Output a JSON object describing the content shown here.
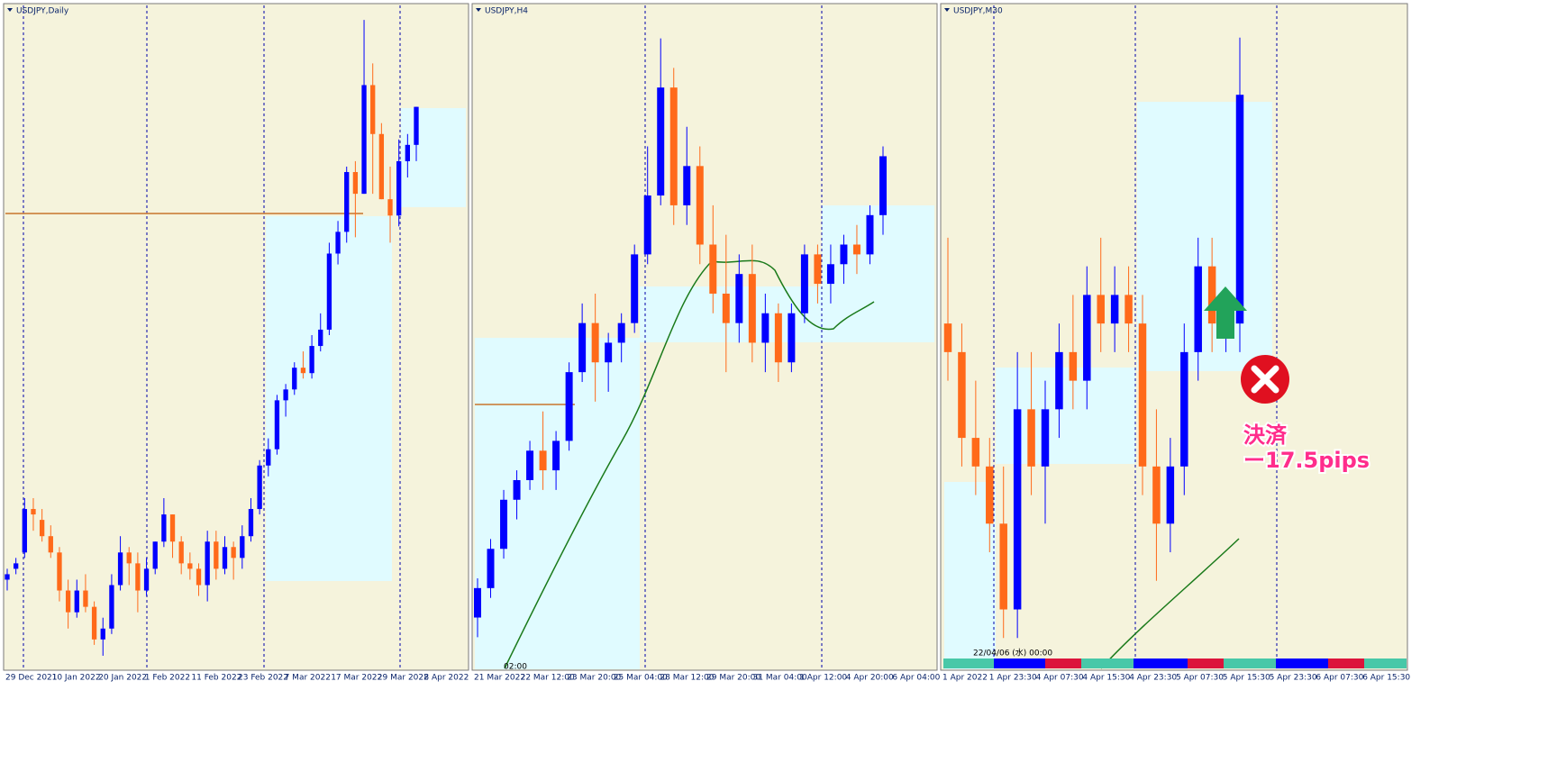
{
  "panels": [
    {
      "title": "USDJPY,Daily",
      "type": "candlestick",
      "ylim": [
        113.2,
        125.3
      ],
      "candles": [
        [
          114.8,
          115.0,
          114.6,
          114.9
        ],
        [
          115.0,
          115.2,
          114.9,
          115.1
        ],
        [
          115.3,
          116.3,
          115.2,
          116.1
        ],
        [
          116.1,
          116.3,
          115.7,
          116.0
        ],
        [
          115.9,
          116.1,
          115.5,
          115.6
        ],
        [
          115.6,
          115.8,
          115.2,
          115.3
        ],
        [
          115.3,
          115.4,
          114.4,
          114.6
        ],
        [
          114.6,
          114.8,
          113.9,
          114.2
        ],
        [
          114.2,
          114.8,
          114.1,
          114.6
        ],
        [
          114.6,
          114.9,
          114.2,
          114.3
        ],
        [
          114.3,
          114.4,
          113.6,
          113.7
        ],
        [
          113.7,
          114.1,
          113.4,
          113.9
        ],
        [
          113.9,
          114.9,
          113.8,
          114.7
        ],
        [
          114.7,
          115.6,
          114.6,
          115.3
        ],
        [
          115.3,
          115.4,
          114.7,
          115.1
        ],
        [
          115.1,
          115.3,
          114.2,
          114.6
        ],
        [
          114.6,
          115.2,
          114.5,
          115.0
        ],
        [
          115.0,
          115.5,
          114.9,
          115.5
        ],
        [
          115.5,
          116.3,
          115.4,
          116.0
        ],
        [
          116.0,
          116.0,
          115.2,
          115.5
        ],
        [
          115.5,
          115.6,
          114.9,
          115.1
        ],
        [
          115.1,
          115.3,
          114.8,
          115.0
        ],
        [
          115.0,
          115.1,
          114.5,
          114.7
        ],
        [
          114.7,
          115.7,
          114.4,
          115.5
        ],
        [
          115.5,
          115.7,
          114.8,
          115.0
        ],
        [
          115.0,
          115.6,
          114.9,
          115.4
        ],
        [
          115.4,
          115.5,
          114.8,
          115.2
        ],
        [
          115.2,
          115.8,
          115.0,
          115.6
        ],
        [
          115.6,
          116.3,
          115.5,
          116.1
        ],
        [
          116.1,
          117.0,
          116.0,
          116.9
        ],
        [
          116.9,
          117.4,
          116.7,
          117.2
        ],
        [
          117.2,
          118.2,
          117.1,
          118.1
        ],
        [
          118.1,
          118.4,
          117.8,
          118.3
        ],
        [
          118.3,
          118.8,
          118.2,
          118.7
        ],
        [
          118.7,
          119.0,
          118.5,
          118.6
        ],
        [
          118.6,
          119.3,
          118.5,
          119.1
        ],
        [
          119.1,
          119.7,
          119.0,
          119.4
        ],
        [
          119.4,
          121.0,
          119.3,
          120.8
        ],
        [
          120.8,
          121.4,
          120.6,
          121.2
        ],
        [
          121.2,
          122.4,
          121.0,
          122.3
        ],
        [
          122.3,
          122.5,
          121.1,
          121.9
        ],
        [
          121.9,
          125.1,
          121.9,
          123.9
        ],
        [
          123.9,
          124.3,
          121.9,
          123.0
        ],
        [
          123.0,
          123.2,
          121.8,
          121.8
        ],
        [
          121.8,
          122.4,
          121.0,
          121.5
        ],
        [
          121.5,
          122.9,
          121.3,
          122.5
        ],
        [
          122.5,
          123.0,
          122.2,
          122.8
        ],
        [
          122.8,
          123.5,
          122.5,
          123.5
        ]
      ],
      "x_labels": [
        "29 Dec 2021",
        "10 Jan 2022",
        "20 Jan 2022",
        "1 Feb 2022",
        "11 Feb 2022",
        "23 Feb 2022",
        "7 Mar 2022",
        "17 Mar 2022",
        "29 Mar 2022",
        "8 Apr 2022"
      ]
    },
    {
      "title": "USDJPY,H4",
      "type": "candlestick",
      "ylim": [
        118.7,
        125.4
      ],
      "candles": [
        [
          119.2,
          119.6,
          119.0,
          119.5
        ],
        [
          119.5,
          120.0,
          119.4,
          119.9
        ],
        [
          119.9,
          120.5,
          119.8,
          120.4
        ],
        [
          120.4,
          120.7,
          120.2,
          120.6
        ],
        [
          120.6,
          121.0,
          120.5,
          120.9
        ],
        [
          120.9,
          121.3,
          120.5,
          120.7
        ],
        [
          120.7,
          121.1,
          120.5,
          121.0
        ],
        [
          121.0,
          121.8,
          120.9,
          121.7
        ],
        [
          121.7,
          122.4,
          121.6,
          122.2
        ],
        [
          122.2,
          122.5,
          121.4,
          121.8
        ],
        [
          121.8,
          122.1,
          121.5,
          122.0
        ],
        [
          122.0,
          122.3,
          121.8,
          122.2
        ],
        [
          122.2,
          123.0,
          122.1,
          122.9
        ],
        [
          122.9,
          124.0,
          122.8,
          123.5
        ],
        [
          123.5,
          125.1,
          123.4,
          124.6
        ],
        [
          124.6,
          124.8,
          123.2,
          123.4
        ],
        [
          123.4,
          124.2,
          123.2,
          123.8
        ],
        [
          123.8,
          124.0,
          122.8,
          123.0
        ],
        [
          123.0,
          123.4,
          122.3,
          122.5
        ],
        [
          122.5,
          123.1,
          121.7,
          122.2
        ],
        [
          122.2,
          122.9,
          122.0,
          122.7
        ],
        [
          122.7,
          123.0,
          121.8,
          122.0
        ],
        [
          122.0,
          122.5,
          121.7,
          122.3
        ],
        [
          122.3,
          122.4,
          121.6,
          121.8
        ],
        [
          121.8,
          122.4,
          121.7,
          122.3
        ],
        [
          122.3,
          123.0,
          122.2,
          122.9
        ],
        [
          122.9,
          123.0,
          122.4,
          122.6
        ],
        [
          122.6,
          123.0,
          122.4,
          122.8
        ],
        [
          122.8,
          123.1,
          122.6,
          123.0
        ],
        [
          123.0,
          123.2,
          122.7,
          122.9
        ],
        [
          122.9,
          123.4,
          122.8,
          123.3
        ],
        [
          123.3,
          124.0,
          123.1,
          123.9
        ]
      ],
      "x_labels": [
        "21 Mar 2022",
        "22 Mar 12:00",
        "23 Mar 20:00",
        "25 Mar 04:00",
        "28 Mar 12:00",
        "29 Mar 20:00",
        "31 Mar 04:00",
        "1 Apr 12:00",
        "4 Apr 20:00",
        "6 Apr 04:00"
      ],
      "cursor_label": "02:00"
    },
    {
      "title": "USDJPY,M30",
      "type": "candlestick",
      "ylim": [
        121.8,
        124.1
      ],
      "candles": [
        [
          123.0,
          123.3,
          122.8,
          122.9
        ],
        [
          122.9,
          123.0,
          122.5,
          122.6
        ],
        [
          122.6,
          122.8,
          122.4,
          122.5
        ],
        [
          122.5,
          122.6,
          122.2,
          122.3
        ],
        [
          122.3,
          122.5,
          121.9,
          122.0
        ],
        [
          122.0,
          122.9,
          121.9,
          122.7
        ],
        [
          122.7,
          122.9,
          122.4,
          122.5
        ],
        [
          122.5,
          122.8,
          122.3,
          122.7
        ],
        [
          122.7,
          123.0,
          122.6,
          122.9
        ],
        [
          122.9,
          123.1,
          122.7,
          122.8
        ],
        [
          122.8,
          123.2,
          122.7,
          123.1
        ],
        [
          123.1,
          123.3,
          122.9,
          123.0
        ],
        [
          123.0,
          123.2,
          122.9,
          123.1
        ],
        [
          123.1,
          123.2,
          122.9,
          123.0
        ],
        [
          123.0,
          123.1,
          122.4,
          122.5
        ],
        [
          122.5,
          122.7,
          122.1,
          122.3
        ],
        [
          122.3,
          122.6,
          122.2,
          122.5
        ],
        [
          122.5,
          123.0,
          122.4,
          122.9
        ],
        [
          122.9,
          123.3,
          122.8,
          123.2
        ],
        [
          123.2,
          123.3,
          122.9,
          123.0
        ],
        [
          123.0,
          123.1,
          122.9,
          123.0
        ],
        [
          123.0,
          124.0,
          122.9,
          123.8
        ]
      ],
      "x_labels": [
        "1 Apr 2022",
        "1 Apr 23:30",
        "4 Apr 07:30",
        "4 Apr 15:30",
        "4 Apr 23:30",
        "5 Apr 07:30",
        "5 Apr 15:30",
        "5 Apr 23:30",
        "6 Apr 07:30",
        "6 Apr 15:30"
      ],
      "cursor_label": "22/04/06 (水) 00:00"
    }
  ],
  "annotation": {
    "label": "決済",
    "result": "ー17.5pips"
  }
}
